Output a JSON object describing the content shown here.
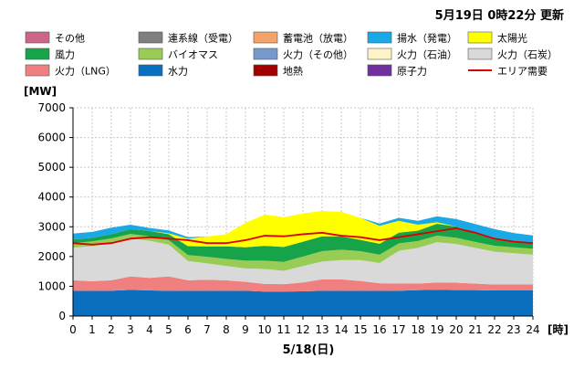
{
  "header": {
    "updated": "5月19日  0時22分 更新"
  },
  "colors": {
    "other": "#cc6688",
    "interconnect": "#7f7f7f",
    "battery": "#f4a36a",
    "pumped": "#1aa9e6",
    "solar": "#ffff00",
    "wind": "#17a34a",
    "biomass": "#99cc55",
    "thermal_other": "#7799cc",
    "thermal_oil": "#fff3c8",
    "coal": "#d9d9d9",
    "lng": "#f08080",
    "hydro": "#0a6fbf",
    "geothermal": "#a00000",
    "nuclear": "#7030a0",
    "demand": "#dd0000"
  },
  "legend": [
    [
      {
        "key": "other",
        "label": "その他"
      },
      {
        "key": "interconnect",
        "label": "連系線（受電）"
      },
      {
        "key": "battery",
        "label": "蓄電池（放電）"
      },
      {
        "key": "pumped",
        "label": "揚水（発電）"
      },
      {
        "key": "solar",
        "label": "太陽光"
      }
    ],
    [
      {
        "key": "wind",
        "label": "風力"
      },
      {
        "key": "biomass",
        "label": "バイオマス"
      },
      {
        "key": "thermal_other",
        "label": "火力（その他）"
      },
      {
        "key": "thermal_oil",
        "label": "火力（石油）"
      },
      {
        "key": "coal",
        "label": "火力（石炭）"
      }
    ],
    [
      {
        "key": "lng",
        "label": "火力（LNG）"
      },
      {
        "key": "hydro",
        "label": "水力"
      },
      {
        "key": "geothermal",
        "label": "地熱"
      },
      {
        "key": "nuclear",
        "label": "原子力"
      },
      {
        "key": "demand",
        "label": "エリア需要",
        "line": true
      }
    ]
  ],
  "chart_data": {
    "type": "area",
    "ylabel": "[MW]",
    "xlabel": "5/18(日)",
    "x_unit": "[時]",
    "ylim": [
      0,
      7000
    ],
    "yticks": [
      0,
      1000,
      2000,
      3000,
      4000,
      5000,
      6000,
      7000
    ],
    "xlim": [
      0,
      24
    ],
    "xticks": [
      0,
      1,
      2,
      3,
      4,
      5,
      6,
      7,
      8,
      9,
      10,
      11,
      12,
      13,
      14,
      15,
      16,
      17,
      18,
      19,
      20,
      21,
      22,
      23,
      24
    ],
    "grid": true,
    "x": [
      0,
      1,
      2,
      3,
      4,
      5,
      6,
      7,
      8,
      9,
      10,
      11,
      12,
      13,
      14,
      15,
      16,
      17,
      18,
      19,
      20,
      21,
      22,
      23,
      24
    ],
    "stacked_series": [
      {
        "key": "hydro",
        "values": [
          850,
          850,
          850,
          880,
          860,
          850,
          850,
          850,
          850,
          850,
          820,
          820,
          830,
          850,
          850,
          850,
          850,
          850,
          870,
          880,
          870,
          870,
          860,
          860,
          860
        ]
      },
      {
        "key": "lng",
        "values": [
          350,
          320,
          350,
          450,
          420,
          480,
          350,
          370,
          350,
          300,
          260,
          250,
          300,
          380,
          380,
          330,
          250,
          240,
          220,
          250,
          250,
          220,
          200,
          200,
          200
        ]
      },
      {
        "key": "coal",
        "values": [
          1100,
          1180,
          1250,
          1280,
          1250,
          1070,
          650,
          550,
          480,
          450,
          500,
          450,
          550,
          600,
          650,
          700,
          680,
          1100,
          1200,
          1350,
          1300,
          1200,
          1100,
          1050,
          1000
        ]
      },
      {
        "key": "biomass",
        "values": [
          150,
          160,
          160,
          150,
          150,
          150,
          200,
          220,
          240,
          260,
          280,
          300,
          320,
          350,
          350,
          300,
          280,
          250,
          230,
          220,
          210,
          200,
          200,
          200,
          200
        ]
      },
      {
        "key": "wind",
        "values": [
          120,
          120,
          140,
          160,
          180,
          200,
          300,
          350,
          420,
          450,
          500,
          500,
          500,
          500,
          450,
          380,
          370,
          360,
          350,
          400,
          380,
          300,
          280,
          220,
          200
        ]
      },
      {
        "key": "solar",
        "values": [
          0,
          0,
          0,
          0,
          0,
          30,
          250,
          330,
          410,
          820,
          1050,
          1000,
          950,
          850,
          820,
          740,
          600,
          400,
          200,
          50,
          0,
          0,
          0,
          0,
          0
        ]
      },
      {
        "key": "pumped",
        "values": [
          200,
          200,
          220,
          150,
          100,
          100,
          50,
          0,
          0,
          0,
          0,
          0,
          0,
          0,
          0,
          0,
          80,
          100,
          130,
          200,
          250,
          300,
          280,
          260,
          250
        ]
      }
    ],
    "demand": [
      2450,
      2400,
      2450,
      2600,
      2650,
      2600,
      2550,
      2450,
      2450,
      2550,
      2700,
      2680,
      2750,
      2800,
      2700,
      2650,
      2550,
      2650,
      2750,
      2850,
      2950,
      2800,
      2600,
      2500,
      2450
    ]
  }
}
